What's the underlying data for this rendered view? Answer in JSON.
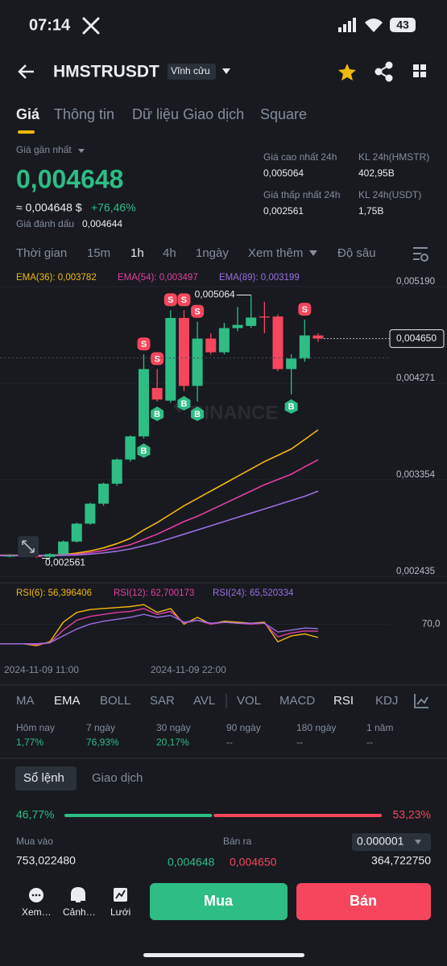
{
  "status_bar": {
    "time": "07:14",
    "battery": "43"
  },
  "header": {
    "symbol": "HMSTRUSDT",
    "tag": "Vĩnh cửu"
  },
  "tabs": [
    "Giá",
    "Thông tin",
    "Dữ liệu Giao dịch",
    "Square"
  ],
  "price": {
    "label": "Giá gần nhất",
    "last": "0,004648",
    "approx": "≈ 0,004648 $",
    "change": "+76,46%",
    "mark_label": "Giá đánh dấu",
    "mark": "0,004644"
  },
  "stats": [
    {
      "label": "Giá cao nhất 24h",
      "value": "0,005064"
    },
    {
      "label": "KL 24h(HMSTR)",
      "value": "402,95B"
    },
    {
      "label": "Giá thấp nhất 24h",
      "value": "0,002561"
    },
    {
      "label": "KL 24h(USDT)",
      "value": "1,75B"
    }
  ],
  "intervals": [
    "Thời gian",
    "15m",
    "1h",
    "4h",
    "1ngày",
    "Xem thêm",
    "Độ sâu"
  ],
  "chart": {
    "type": "candlestick",
    "ylim": [
      0.002358,
      0.005267
    ],
    "yticks": [
      {
        "value": 0.00519,
        "label": "0,005190"
      },
      {
        "value": 0.004271,
        "label": "0,004271"
      },
      {
        "value": 0.003354,
        "label": "0,003354"
      },
      {
        "value": 0.002435,
        "label": "0,002435"
      }
    ],
    "watermark": "BINANCE",
    "high_label": {
      "value": 0.005064,
      "label": "0,005064"
    },
    "low_label": {
      "value": 0.002561,
      "label": "0,002561"
    },
    "current": {
      "value": 0.00465,
      "label": "0,004650"
    },
    "candles": [
      {
        "open": 0.00258,
        "high": 0.0026,
        "low": 0.00257,
        "close": 0.002585
      },
      {
        "open": 0.002585,
        "high": 0.0026,
        "low": 0.002575,
        "close": 0.00258
      },
      {
        "open": 0.00258,
        "high": 0.002595,
        "low": 0.002565,
        "close": 0.002575
      },
      {
        "open": 0.002575,
        "high": 0.00261,
        "low": 0.002561,
        "close": 0.0026
      },
      {
        "open": 0.0026,
        "high": 0.00273,
        "low": 0.00259,
        "close": 0.00272
      },
      {
        "open": 0.00272,
        "high": 0.0029,
        "low": 0.00271,
        "close": 0.00289
      },
      {
        "open": 0.00289,
        "high": 0.00309,
        "low": 0.00288,
        "close": 0.00308
      },
      {
        "open": 0.00308,
        "high": 0.00328,
        "low": 0.00306,
        "close": 0.00327
      },
      {
        "open": 0.00327,
        "high": 0.00351,
        "low": 0.00325,
        "close": 0.0035
      },
      {
        "open": 0.0035,
        "high": 0.00373,
        "low": 0.00348,
        "close": 0.00372
      },
      {
        "open": 0.00372,
        "high": 0.0045,
        "low": 0.0037,
        "close": 0.00436,
        "signals": [
          "S",
          "B"
        ]
      },
      {
        "open": 0.00418,
        "high": 0.00436,
        "low": 0.00405,
        "close": 0.00407,
        "signals": [
          "S",
          "B"
        ]
      },
      {
        "open": 0.00406,
        "high": 0.00492,
        "low": 0.00404,
        "close": 0.004846,
        "signals": [
          "S"
        ]
      },
      {
        "open": 0.004846,
        "high": 0.00492,
        "low": 0.00415,
        "close": 0.0042,
        "signals": [
          "S",
          "B"
        ]
      },
      {
        "open": 0.0042,
        "high": 0.00481,
        "low": 0.00405,
        "close": 0.00465,
        "signals": [
          "S",
          "B"
        ]
      },
      {
        "open": 0.00465,
        "high": 0.0047,
        "low": 0.0045,
        "close": 0.00452
      },
      {
        "open": 0.00452,
        "high": 0.0048,
        "low": 0.0045,
        "close": 0.00475
      },
      {
        "open": 0.00475,
        "high": 0.00495,
        "low": 0.00472,
        "close": 0.00478
      },
      {
        "open": 0.00477,
        "high": 0.005064,
        "low": 0.00475,
        "close": 0.00485
      },
      {
        "open": 0.00486,
        "high": 0.005,
        "low": 0.0047,
        "close": 0.00485
      },
      {
        "open": 0.00486,
        "high": 0.00488,
        "low": 0.00434,
        "close": 0.00436
      },
      {
        "open": 0.00436,
        "high": 0.0045,
        "low": 0.00412,
        "close": 0.00446,
        "signals": [
          "B"
        ]
      },
      {
        "open": 0.00446,
        "high": 0.00483,
        "low": 0.00443,
        "close": 0.00468,
        "signals": [
          "S"
        ]
      },
      {
        "open": 0.00468,
        "high": 0.0047,
        "low": 0.00462,
        "close": 0.00465
      }
    ],
    "up_color": "#2ebd85",
    "down_color": "#f6465d",
    "ema": [
      {
        "label": "EMA(36): 0,003782",
        "color": "#f0b90b",
        "values": [
          0.00259,
          0.00259,
          0.002588,
          0.002588,
          0.002595,
          0.00261,
          0.00263,
          0.00266,
          0.0027,
          0.00275,
          0.00283,
          0.0029,
          0.00298,
          0.00306,
          0.00313,
          0.0032,
          0.00327,
          0.00334,
          0.00341,
          0.00348,
          0.00354,
          0.0036,
          0.00369,
          0.003782
        ]
      },
      {
        "label": "EMA(54): 0,003497",
        "color": "#e040a0",
        "values": [
          0.002588,
          0.002588,
          0.002588,
          0.002588,
          0.002592,
          0.0026,
          0.002615,
          0.002635,
          0.00266,
          0.00269,
          0.00274,
          0.00279,
          0.00285,
          0.00291,
          0.00296,
          0.00302,
          0.00308,
          0.00314,
          0.0032,
          0.00326,
          0.00331,
          0.00336,
          0.00343,
          0.003497
        ]
      },
      {
        "label": "EMA(89): 0,003199",
        "color": "#9b6fe0",
        "values": [
          0.002585,
          0.002585,
          0.002585,
          0.002585,
          0.002588,
          0.002592,
          0.0026,
          0.002612,
          0.002628,
          0.00265,
          0.00268,
          0.00271,
          0.00275,
          0.00279,
          0.00283,
          0.00287,
          0.00291,
          0.00295,
          0.00299,
          0.00303,
          0.00307,
          0.00311,
          0.00315,
          0.003199
        ]
      }
    ],
    "rsi_ylim": [
      25,
      95
    ],
    "rsi_yticks": [
      {
        "value": 70,
        "label": "70,0"
      }
    ],
    "rsi": [
      {
        "label": "RSI(6): 56,396406",
        "color": "#f0b90b",
        "values": [
          50,
          50,
          48,
          52,
          72,
          82,
          85,
          86,
          87,
          88,
          90,
          82,
          86,
          70,
          77,
          70,
          73,
          72,
          71,
          72,
          52,
          58,
          60,
          56.396406
        ]
      },
      {
        "label": "RSI(12): 62,700173",
        "color": "#e040a0",
        "values": [
          50,
          50,
          49,
          51,
          64,
          74,
          78,
          80,
          82,
          83,
          86,
          80,
          83,
          71,
          74,
          70,
          72,
          71,
          70,
          71,
          57,
          61,
          63,
          62.700173
        ]
      },
      {
        "label": "RSI(24): 65,520334",
        "color": "#9b6fe0",
        "values": [
          50,
          50,
          50,
          51,
          58,
          65,
          70,
          73,
          75,
          77,
          80,
          77,
          79,
          72,
          74,
          71,
          72,
          71,
          71,
          71,
          62,
          64,
          66,
          65.520334
        ]
      }
    ],
    "time_labels": [
      "2024-11-09 11:00",
      "2024-11-09 22:00"
    ]
  },
  "indicators": [
    "MA",
    "EMA",
    "BOLL",
    "SAR",
    "AVL",
    "VOL",
    "MACD",
    "RSI",
    "KDJ"
  ],
  "performance": [
    {
      "label": "Hôm nay",
      "value": "1,77%"
    },
    {
      "label": "7 ngày",
      "value": "76,93%"
    },
    {
      "label": "30 ngày",
      "value": "20,17%"
    },
    {
      "label": "90 ngày",
      "value": "--"
    },
    {
      "label": "180 ngày",
      "value": "--"
    },
    {
      "label": "1 năm",
      "value": "--"
    }
  ],
  "orderbook": {
    "tabs": [
      "Sổ lệnh",
      "Giao dịch"
    ],
    "buy_ratio": {
      "value": 46.77,
      "label": "46,77%"
    },
    "sell_ratio": {
      "value": 53.23,
      "label": "53,23%"
    },
    "buy_label": "Mua vào",
    "sell_label": "Bán ra",
    "precision": "0.000001",
    "buy_qty": "753,022480",
    "bid": "0,004648",
    "ask": "0,004650",
    "sell_qty": "364,722750"
  },
  "bottom_bar": {
    "items": [
      "Xem…",
      "Cảnh…",
      "Lưới"
    ],
    "buy": "Mua",
    "sell": "Bán"
  }
}
